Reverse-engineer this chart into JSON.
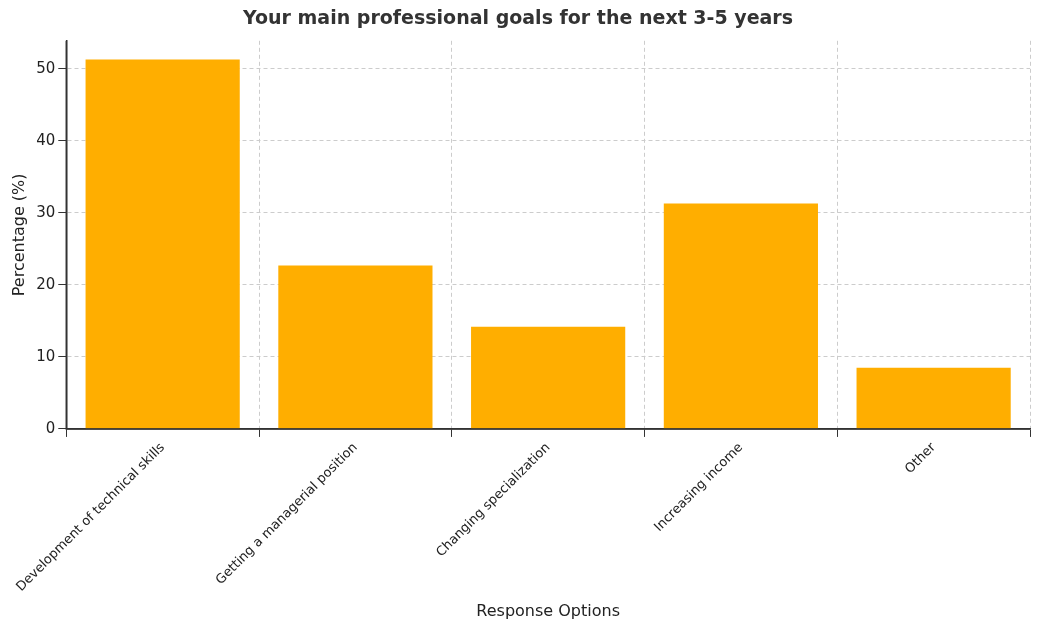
{
  "chart_data": {
    "type": "bar",
    "title": "Your main professional goals for the next 3-5 years",
    "xlabel": "Response Options",
    "ylabel": "Percentage (%)",
    "categories": [
      "Development of technical skills",
      "Getting a managerial position",
      "Changing specialization",
      "Increasing income",
      "Other"
    ],
    "values": [
      51.3,
      22.7,
      14.2,
      31.3,
      8.5
    ],
    "color": "#ffae00",
    "ylim": [
      0,
      53.9
    ],
    "yticks": [
      0,
      10,
      20,
      30,
      40,
      50
    ],
    "grid": true
  }
}
